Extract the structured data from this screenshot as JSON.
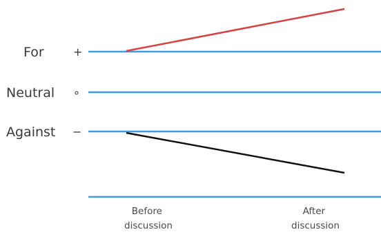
{
  "rows": [
    {
      "label": "For",
      "marker": "+"
    },
    {
      "label": "Neutral",
      "marker": "∘"
    },
    {
      "label": "Against",
      "marker": "−"
    }
  ],
  "columns": [
    {
      "lines": [
        "Before",
        "discussion"
      ]
    },
    {
      "lines": [
        "After",
        "discussion"
      ]
    }
  ],
  "lines": [
    {
      "from": "For",
      "direction": "up",
      "color": "#d94040"
    },
    {
      "from": "Against",
      "direction": "down",
      "color": "#111111"
    }
  ],
  "colors": {
    "gridline": "#3d9be9",
    "for_line": "#d94040",
    "against_line": "#111111",
    "text": "#3a3a3a"
  }
}
